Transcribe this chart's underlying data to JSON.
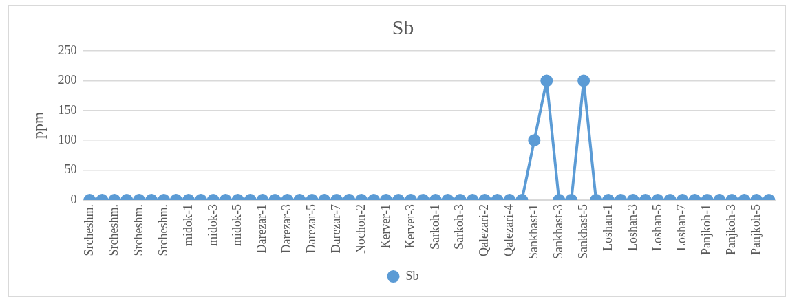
{
  "chart_data": {
    "type": "line",
    "title": "Sb",
    "ylabel": "ppm",
    "categories": [
      "Srcheshm.",
      null,
      "Srcheshm.",
      null,
      "Srcheshm.",
      null,
      "Srcheshm.",
      null,
      "midok-1",
      null,
      "midok-3",
      null,
      "midok-5",
      null,
      "Darezar-1",
      null,
      "Darezar-3",
      null,
      "Darezar-5",
      null,
      "Darezar-7",
      null,
      "Nochon-2",
      null,
      "Kerver-1",
      null,
      "Kerver-3",
      null,
      "Sarkoh-1",
      null,
      "Sarkoh-3",
      null,
      "Qalezari-2",
      null,
      "Qalezari-4",
      null,
      "Sankhast-1",
      null,
      "Sankhast-3",
      null,
      "Sankhast-5",
      null,
      "Loshan-1",
      null,
      "Loshan-3",
      null,
      "Loshan-5",
      null,
      "Loshan-7",
      null,
      "Panjkoh-1",
      null,
      "Panjkoh-3",
      null,
      "Panjkoh-5",
      null
    ],
    "series": [
      {
        "name": "Sb",
        "color": "#5b9bd5",
        "values": [
          0,
          0,
          0,
          0,
          0,
          0,
          0,
          0,
          0,
          0,
          0,
          0,
          0,
          0,
          0,
          0,
          0,
          0,
          0,
          0,
          0,
          0,
          0,
          0,
          0,
          0,
          0,
          0,
          0,
          0,
          0,
          0,
          0,
          0,
          0,
          0,
          100,
          200,
          0,
          0,
          200,
          0,
          0,
          0,
          0,
          0,
          0,
          0,
          0,
          0,
          0,
          0,
          0,
          0,
          0,
          0
        ]
      }
    ],
    "ylim": [
      0,
      250
    ],
    "yticks": [
      0,
      50,
      100,
      150,
      200,
      250
    ],
    "grid": "y",
    "legend": "bottom",
    "marker": "circle",
    "line_style": "solid"
  }
}
